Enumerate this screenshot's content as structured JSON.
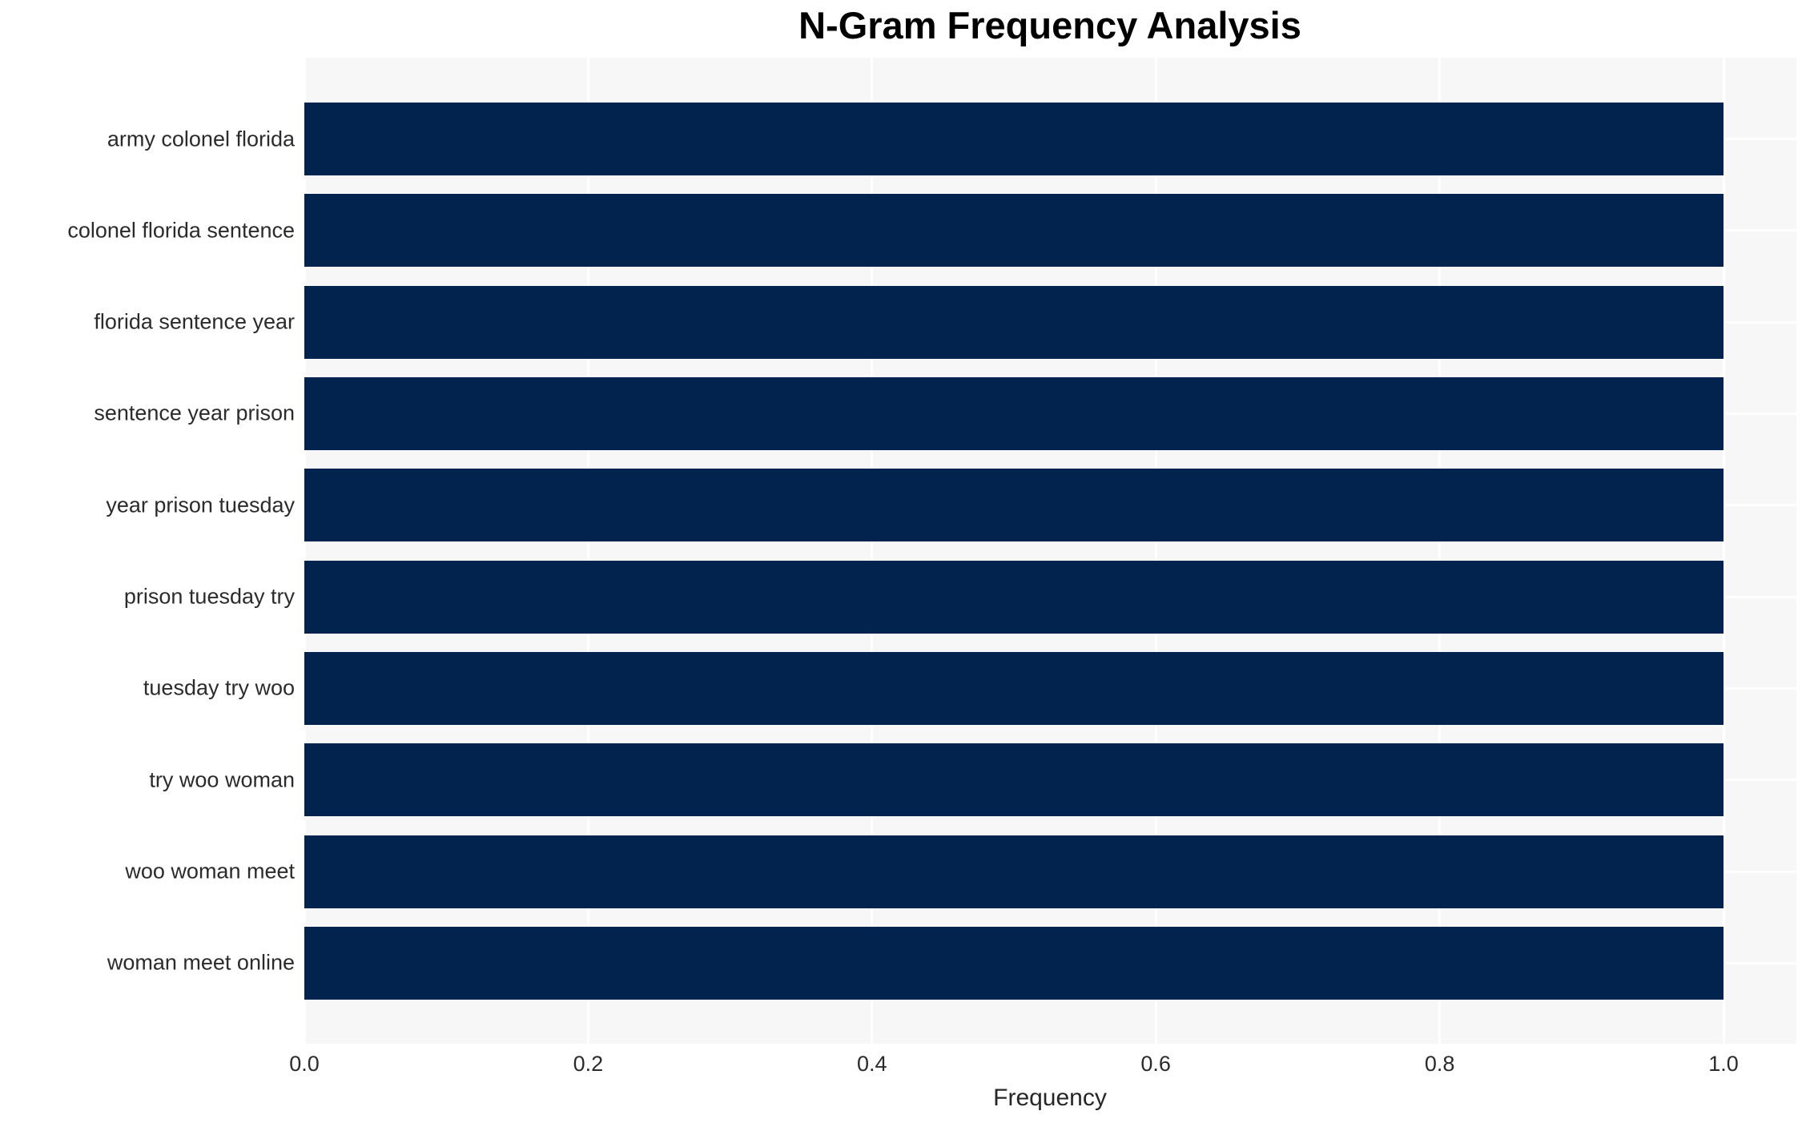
{
  "chart_data": {
    "type": "bar",
    "orientation": "horizontal",
    "title": "N-Gram Frequency Analysis",
    "xlabel": "Frequency",
    "ylabel": "",
    "categories": [
      "army colonel florida",
      "colonel florida sentence",
      "florida sentence year",
      "sentence year prison",
      "year prison tuesday",
      "prison tuesday try",
      "tuesday try woo",
      "try woo woman",
      "woo woman meet",
      "woman meet online"
    ],
    "values": [
      1.0,
      1.0,
      1.0,
      1.0,
      1.0,
      1.0,
      1.0,
      1.0,
      1.0,
      1.0
    ],
    "xlim": [
      0,
      1.05
    ],
    "xticks": [
      0.0,
      0.2,
      0.4,
      0.6,
      0.8,
      1.0
    ],
    "xtick_labels": [
      "0.0",
      "0.2",
      "0.4",
      "0.6",
      "0.8",
      "1.0"
    ],
    "grid": true,
    "legend": false,
    "colors": {
      "bar": "#02234e",
      "plot_background": "#f7f7f8",
      "gridline": "#ffffff",
      "figure_background": "#ffffff",
      "tick_text": "#2b2b2b",
      "title_text": "#000000"
    }
  }
}
